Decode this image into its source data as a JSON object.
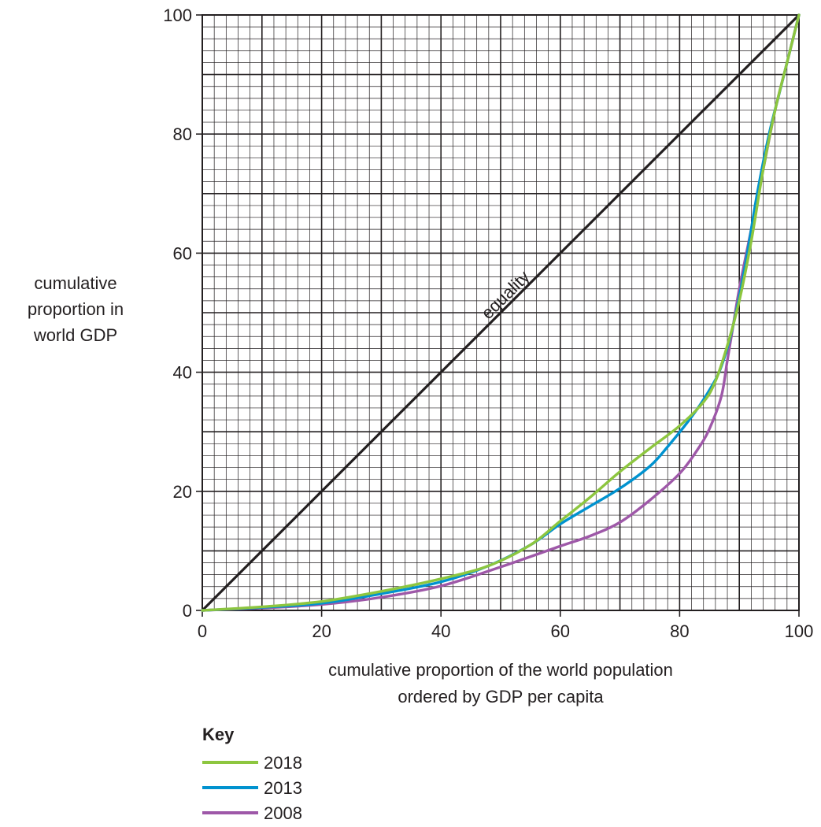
{
  "chart_data": {
    "type": "line",
    "xlabel": [
      "cumulative proportion of the world population",
      "ordered by GDP per capita"
    ],
    "ylabel": [
      "cumulative",
      "proportion in",
      "world GDP"
    ],
    "xlim": [
      0,
      100
    ],
    "ylim": [
      0,
      100
    ],
    "x_ticks": [
      0,
      20,
      40,
      60,
      80,
      100
    ],
    "y_ticks": [
      0,
      20,
      40,
      60,
      80,
      100
    ],
    "x_tick_labels": [
      "0",
      "20",
      "40",
      "60",
      "80",
      "100"
    ],
    "y_tick_labels": [
      "0",
      "20",
      "40",
      "60",
      "80",
      "100"
    ],
    "grid": true,
    "equality_line": {
      "label": "equality",
      "color": "#231f20",
      "points": [
        [
          0,
          0
        ],
        [
          100,
          100
        ]
      ]
    },
    "legend_position": "bottom-left",
    "key_title": "Key",
    "series": [
      {
        "name": "2018",
        "color": "#8dc63f",
        "points": [
          [
            0,
            0
          ],
          [
            10,
            0.6
          ],
          [
            20,
            1.5
          ],
          [
            30,
            3.2
          ],
          [
            40,
            5.3
          ],
          [
            48,
            7.5
          ],
          [
            55,
            11
          ],
          [
            60,
            15
          ],
          [
            65,
            19
          ],
          [
            70,
            23.3
          ],
          [
            75,
            27.2
          ],
          [
            80,
            31
          ],
          [
            84,
            35
          ],
          [
            86,
            38.5
          ],
          [
            88,
            44.5
          ],
          [
            90,
            52
          ],
          [
            92,
            62
          ],
          [
            94,
            74
          ],
          [
            96,
            84
          ],
          [
            98,
            92
          ],
          [
            100,
            100
          ]
        ]
      },
      {
        "name": "2013",
        "color": "#0092cf",
        "points": [
          [
            0,
            0
          ],
          [
            10,
            0.5
          ],
          [
            20,
            1.2
          ],
          [
            30,
            2.8
          ],
          [
            40,
            4.8
          ],
          [
            48,
            7.5
          ],
          [
            55,
            11
          ],
          [
            60,
            14.5
          ],
          [
            65,
            17.5
          ],
          [
            70,
            20.5
          ],
          [
            75,
            24.2
          ],
          [
            78,
            27.5
          ],
          [
            82,
            32.5
          ],
          [
            85,
            37
          ],
          [
            87,
            41
          ],
          [
            89,
            48
          ],
          [
            91,
            58
          ],
          [
            93,
            70
          ],
          [
            95,
            80
          ],
          [
            97,
            88
          ],
          [
            100,
            100
          ]
        ]
      },
      {
        "name": "2008",
        "color": "#9e58a8",
        "points": [
          [
            0,
            0
          ],
          [
            10,
            0.4
          ],
          [
            20,
            1
          ],
          [
            30,
            2.2
          ],
          [
            40,
            4.1
          ],
          [
            50,
            7.3
          ],
          [
            60,
            10.8
          ],
          [
            65,
            12.5
          ],
          [
            70,
            14.8
          ],
          [
            75,
            18.5
          ],
          [
            80,
            23
          ],
          [
            83,
            27
          ],
          [
            85,
            30.5
          ],
          [
            87,
            36
          ],
          [
            88,
            42
          ],
          [
            89,
            48
          ],
          [
            90,
            54
          ],
          [
            92,
            64
          ],
          [
            94,
            74
          ],
          [
            96,
            84
          ],
          [
            98,
            92
          ],
          [
            100,
            100
          ]
        ]
      }
    ]
  }
}
